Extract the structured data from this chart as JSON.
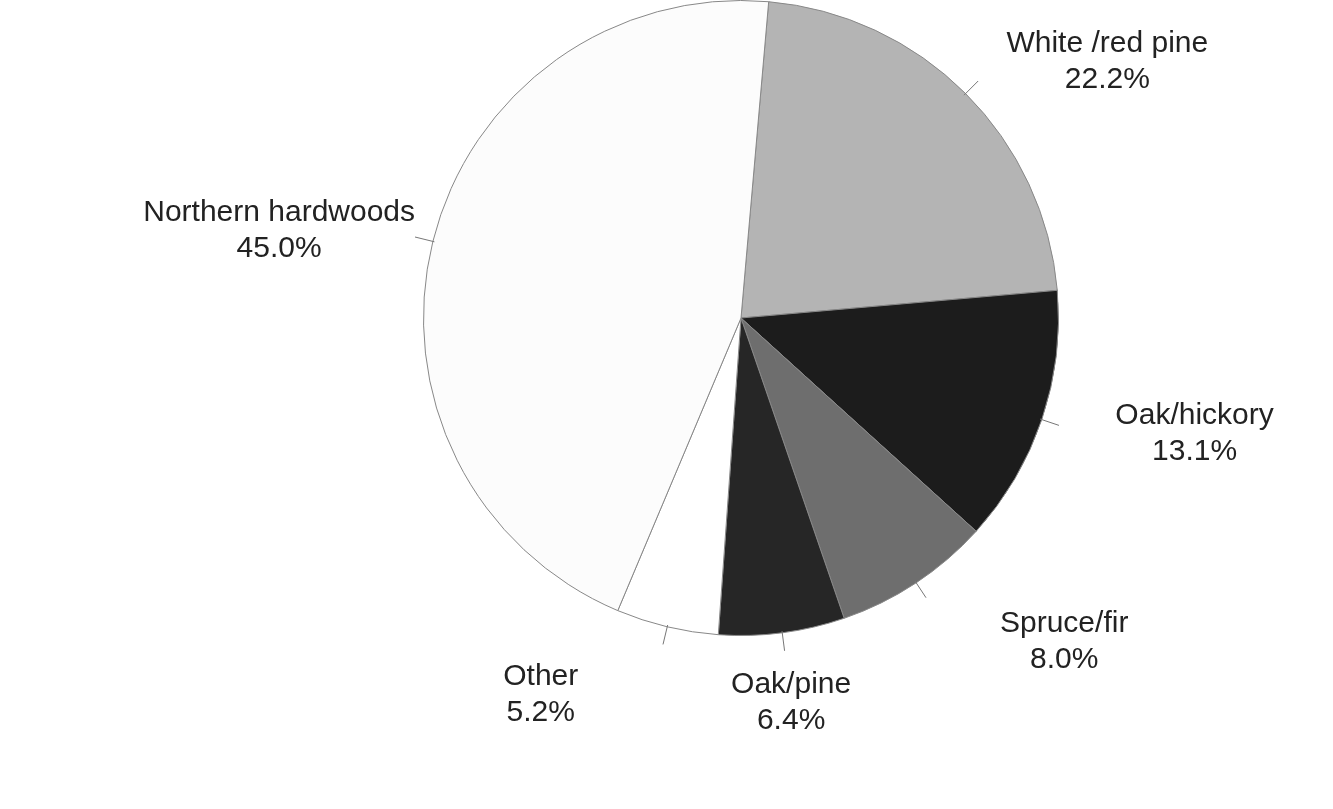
{
  "chart_data": {
    "type": "pie",
    "categories": [
      "White /red pine",
      "Oak/hickory",
      "Spruce/fir",
      "Oak/pine",
      "Other",
      "Northern hardwoods"
    ],
    "values": [
      22.2,
      13.1,
      8.0,
      6.4,
      5.2,
      45.0
    ],
    "value_labels": [
      "22.2%",
      "13.1%",
      "8.0%",
      "6.4%",
      "5.2%",
      "45.0%"
    ],
    "colors": [
      "#b4b4b4",
      "#1c1c1c",
      "#6e6e6e",
      "#262626",
      "#ffffff",
      "#fcfcfc"
    ],
    "legend": false
  }
}
